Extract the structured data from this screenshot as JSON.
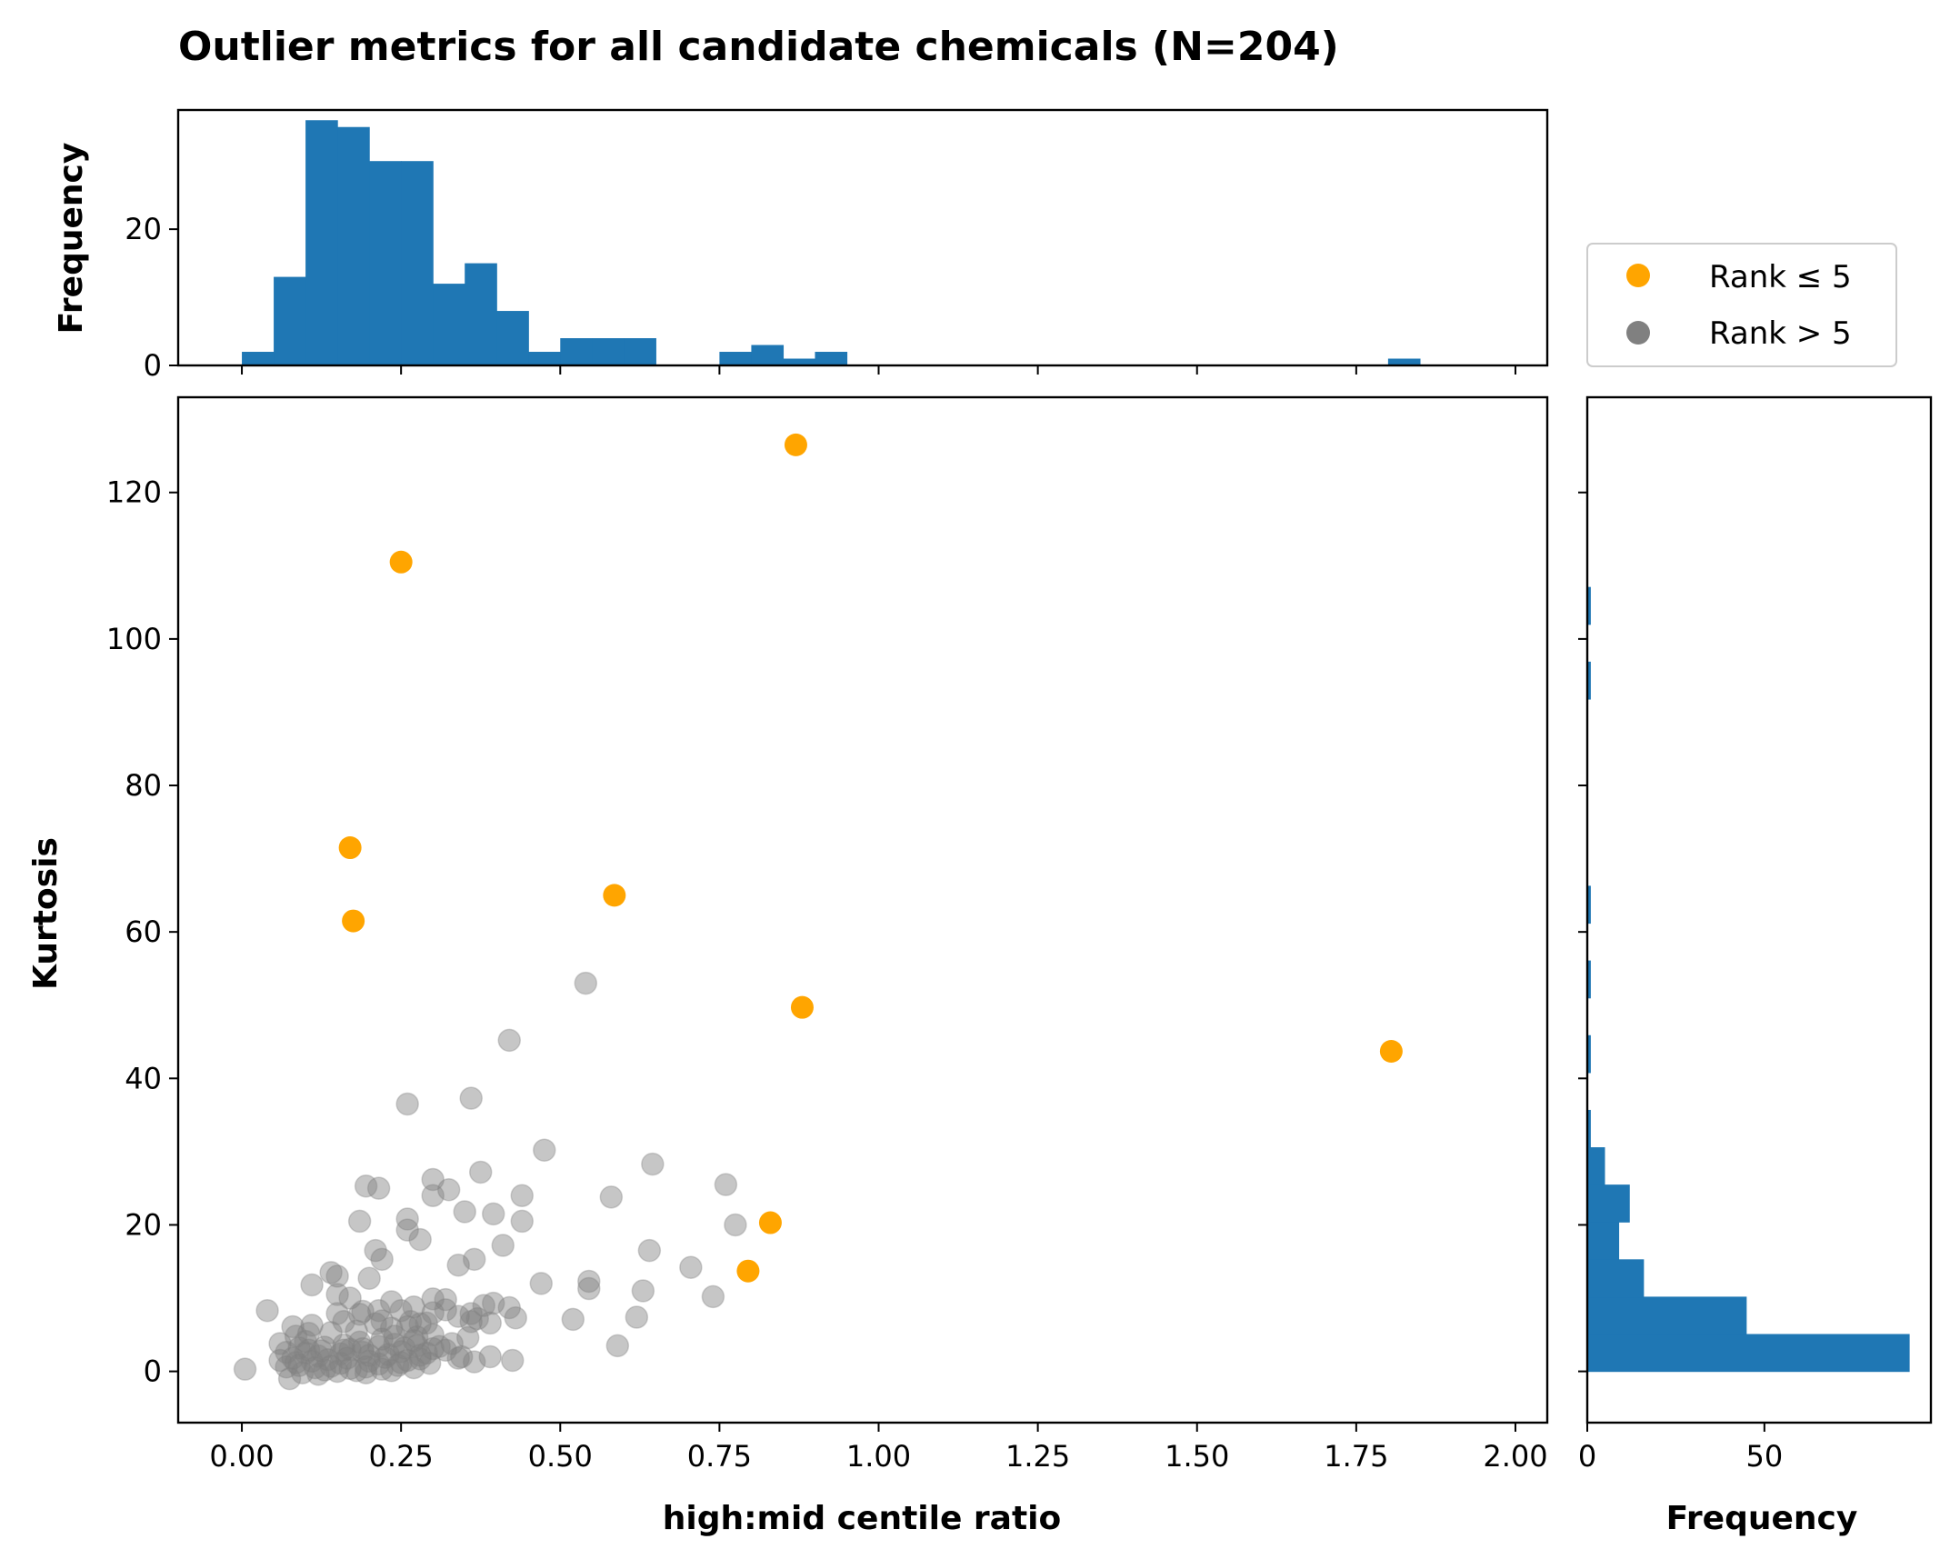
{
  "chart_data": {
    "type": "scatter",
    "title": "Outlier metrics for all candidate chemicals (N=204)",
    "xlabel": "high:mid centile ratio",
    "ylabel": "Kurtosis",
    "xlim": [
      -0.1,
      2.05
    ],
    "ylim": [
      -7,
      133
    ],
    "x_ticks": [
      "0.00",
      "0.25",
      "0.50",
      "0.75",
      "1.00",
      "1.25",
      "1.50",
      "1.75",
      "2.00"
    ],
    "x_tick_values": [
      0,
      0.25,
      0.5,
      0.75,
      1.0,
      1.25,
      1.5,
      1.75,
      2.0
    ],
    "y_ticks": [
      "0",
      "20",
      "40",
      "60",
      "80",
      "100",
      "120"
    ],
    "y_tick_values": [
      0,
      20,
      40,
      60,
      80,
      100,
      120
    ],
    "grid": false,
    "legend": {
      "placement": "right-of-top-histogram",
      "entries": [
        {
          "label": "Rank ≤ 5",
          "color": "#FFA500"
        },
        {
          "label": "Rank > 5",
          "color": "#808080"
        }
      ]
    },
    "series": [
      {
        "name": "Rank ≤ 5",
        "color": "#FFA500",
        "points": [
          [
            0.87,
            126.5
          ],
          [
            0.25,
            110.5
          ],
          [
            0.17,
            71.5
          ],
          [
            0.175,
            61.5
          ],
          [
            0.585,
            65
          ],
          [
            0.88,
            49.7
          ],
          [
            1.805,
            43.7
          ],
          [
            0.83,
            20.3
          ],
          [
            0.795,
            13.7
          ]
        ]
      },
      {
        "name": "Rank > 5",
        "color": "#808080",
        "points": [
          [
            0.54,
            53
          ],
          [
            0.42,
            45.2
          ],
          [
            0.36,
            37.3
          ],
          [
            0.26,
            36.5
          ],
          [
            0.475,
            30.2
          ],
          [
            0.645,
            28.3
          ],
          [
            0.375,
            27.2
          ],
          [
            0.3,
            26.2
          ],
          [
            0.195,
            25.3
          ],
          [
            0.215,
            25
          ],
          [
            0.325,
            24.8
          ],
          [
            0.3,
            24
          ],
          [
            0.44,
            24
          ],
          [
            0.58,
            23.8
          ],
          [
            0.76,
            25.5
          ],
          [
            0.35,
            21.8
          ],
          [
            0.395,
            21.5
          ],
          [
            0.26,
            20.8
          ],
          [
            0.44,
            20.5
          ],
          [
            0.185,
            20.5
          ],
          [
            0.775,
            20
          ],
          [
            0.26,
            19.3
          ],
          [
            0.28,
            18
          ],
          [
            0.41,
            17.2
          ],
          [
            0.21,
            16.5
          ],
          [
            0.64,
            16.5
          ],
          [
            0.365,
            15.3
          ],
          [
            0.22,
            15.3
          ],
          [
            0.34,
            14.5
          ],
          [
            0.705,
            14.2
          ],
          [
            0.545,
            12.3
          ],
          [
            0.14,
            13.5
          ],
          [
            0.2,
            12.7
          ],
          [
            0.15,
            13
          ],
          [
            0.47,
            12
          ],
          [
            0.11,
            11.8
          ],
          [
            0.545,
            11.3
          ],
          [
            0.63,
            11
          ],
          [
            0.3,
            9.9
          ],
          [
            0.32,
            9.8
          ],
          [
            0.235,
            9.5
          ],
          [
            0.15,
            10.5
          ],
          [
            0.17,
            10
          ],
          [
            0.38,
            9
          ],
          [
            0.395,
            9.3
          ],
          [
            0.42,
            8.7
          ],
          [
            0.27,
            8.8
          ],
          [
            0.32,
            8.4
          ],
          [
            0.15,
            7.9
          ],
          [
            0.185,
            7.8
          ],
          [
            0.19,
            8.2
          ],
          [
            0.215,
            8.3
          ],
          [
            0.25,
            8.3
          ],
          [
            0.3,
            8
          ],
          [
            0.34,
            7.5
          ],
          [
            0.37,
            7.2
          ],
          [
            0.43,
            7.3
          ],
          [
            0.36,
            6.8
          ],
          [
            0.39,
            6.6
          ],
          [
            0.04,
            8.3
          ],
          [
            0.08,
            6.1
          ],
          [
            0.11,
            6.3
          ],
          [
            0.21,
            6.5
          ],
          [
            0.265,
            6.8
          ],
          [
            0.28,
            6.5
          ],
          [
            0.22,
            6.9
          ],
          [
            0.52,
            7.1
          ],
          [
            0.74,
            10.2
          ],
          [
            0.62,
            7.4
          ],
          [
            0.105,
            5.2
          ],
          [
            0.085,
            4.8
          ],
          [
            0.14,
            5.3
          ],
          [
            0.18,
            5.5
          ],
          [
            0.24,
            4.8
          ],
          [
            0.3,
            5
          ],
          [
            0.33,
            3.8
          ],
          [
            0.355,
            4.6
          ],
          [
            0.59,
            3.5
          ],
          [
            0.06,
            3.8
          ],
          [
            0.09,
            3.2
          ],
          [
            0.13,
            3.3
          ],
          [
            0.16,
            3.6
          ],
          [
            0.185,
            4
          ],
          [
            0.215,
            3.4
          ],
          [
            0.255,
            3.2
          ],
          [
            0.275,
            3.5
          ],
          [
            0.31,
            3.4
          ],
          [
            0.07,
            2.6
          ],
          [
            0.1,
            2.5
          ],
          [
            0.12,
            2.1
          ],
          [
            0.155,
            2.4
          ],
          [
            0.19,
            2.6
          ],
          [
            0.23,
            2.3
          ],
          [
            0.25,
            2.7
          ],
          [
            0.29,
            2.5
          ],
          [
            0.06,
            1.5
          ],
          [
            0.08,
            1.8
          ],
          [
            0.11,
            1.4
          ],
          [
            0.135,
            1.6
          ],
          [
            0.165,
            1.8
          ],
          [
            0.2,
            1.4
          ],
          [
            0.225,
            1.9
          ],
          [
            0.26,
            1.5
          ],
          [
            0.28,
            1.7
          ],
          [
            0.34,
            1.8
          ],
          [
            0.39,
            2
          ],
          [
            0.365,
            1.3
          ],
          [
            0.425,
            1.5
          ],
          [
            0.005,
            0.3
          ],
          [
            0.07,
            0.6
          ],
          [
            0.09,
            0.8
          ],
          [
            0.115,
            0.5
          ],
          [
            0.14,
            0.7
          ],
          [
            0.17,
            0.4
          ],
          [
            0.195,
            0.6
          ],
          [
            0.22,
            0.3
          ],
          [
            0.245,
            0.8
          ],
          [
            0.27,
            0.5
          ],
          [
            0.075,
            -1
          ],
          [
            0.12,
            -0.4
          ],
          [
            0.15,
            0
          ],
          [
            0.195,
            -0.2
          ],
          [
            0.235,
            0.1
          ],
          [
            0.2,
            2.2
          ],
          [
            0.17,
            3
          ],
          [
            0.1,
            4.1
          ],
          [
            0.27,
            4.2
          ],
          [
            0.32,
            2.9
          ],
          [
            0.085,
            1.2
          ],
          [
            0.125,
            2.8
          ],
          [
            0.155,
            1.1
          ],
          [
            0.18,
            0.1
          ],
          [
            0.215,
            1
          ],
          [
            0.24,
            3.7
          ],
          [
            0.295,
            1.1
          ],
          [
            0.13,
            0.2
          ],
          [
            0.26,
            6.1
          ],
          [
            0.28,
            2.2
          ],
          [
            0.16,
            6.8
          ],
          [
            0.25,
            1.2
          ],
          [
            0.19,
            3.1
          ],
          [
            0.22,
            4.4
          ],
          [
            0.105,
            2.9
          ],
          [
            0.29,
            6.6
          ],
          [
            0.3,
            3.1
          ],
          [
            0.36,
            7.9
          ],
          [
            0.275,
            4.7
          ],
          [
            0.095,
            -0.2
          ],
          [
            0.235,
            5.9
          ],
          [
            0.345,
            2
          ],
          [
            0.16,
            2.9
          ]
        ]
      }
    ],
    "top_histogram": {
      "ylabel": "Frequency",
      "y_ticks": [
        "0",
        "20"
      ],
      "y_tick_values": [
        0,
        20
      ],
      "ylim": [
        0,
        37.5
      ],
      "bin_width": 0.05,
      "bin_start": 0.0,
      "counts": [
        2,
        13,
        36,
        35,
        30,
        30,
        12,
        15,
        8,
        2,
        4,
        4,
        4,
        0,
        0,
        2,
        3,
        1,
        2,
        0,
        0,
        0,
        0,
        0,
        0,
        0,
        0,
        0,
        0,
        0,
        0,
        0,
        0,
        0,
        0,
        0,
        1
      ]
    },
    "right_histogram": {
      "xlabel": "Frequency",
      "x_ticks": [
        "0",
        "50"
      ],
      "x_tick_values": [
        0,
        50
      ],
      "xlim": [
        0,
        97
      ],
      "bin_height": 5.1,
      "bin_start": 0.0,
      "counts": [
        91,
        45,
        16,
        9,
        12,
        5,
        1,
        0,
        1,
        0,
        1,
        0,
        1,
        0,
        0,
        0,
        0,
        0,
        1,
        0,
        1,
        0,
        0,
        0,
        0,
        0,
        0,
        0,
        0,
        0,
        0,
        0,
        0,
        0,
        0,
        0,
        0,
        0,
        0,
        0,
        0,
        0,
        0,
        0,
        0,
        0,
        0,
        0,
        0,
        0,
        0,
        0,
        0,
        0,
        0,
        0,
        0,
        0,
        0,
        0,
        0,
        0,
        0,
        0,
        0,
        0,
        0,
        0,
        0,
        0,
        0,
        0,
        0,
        0,
        0,
        0,
        0,
        0,
        0,
        0,
        0,
        0,
        0,
        0,
        0,
        0,
        0,
        0,
        0,
        0,
        0,
        0,
        0,
        0,
        0,
        0,
        0,
        0,
        0,
        0,
        0,
        0,
        0,
        0,
        0,
        0,
        0,
        0,
        0,
        0,
        0,
        0,
        0,
        0,
        0,
        0,
        0,
        0,
        0,
        0,
        0,
        0,
        0,
        0,
        0,
        0,
        0,
        0,
        0,
        0,
        0,
        0,
        0,
        0,
        0
      ]
    },
    "hist_color": "#1F77B4"
  }
}
